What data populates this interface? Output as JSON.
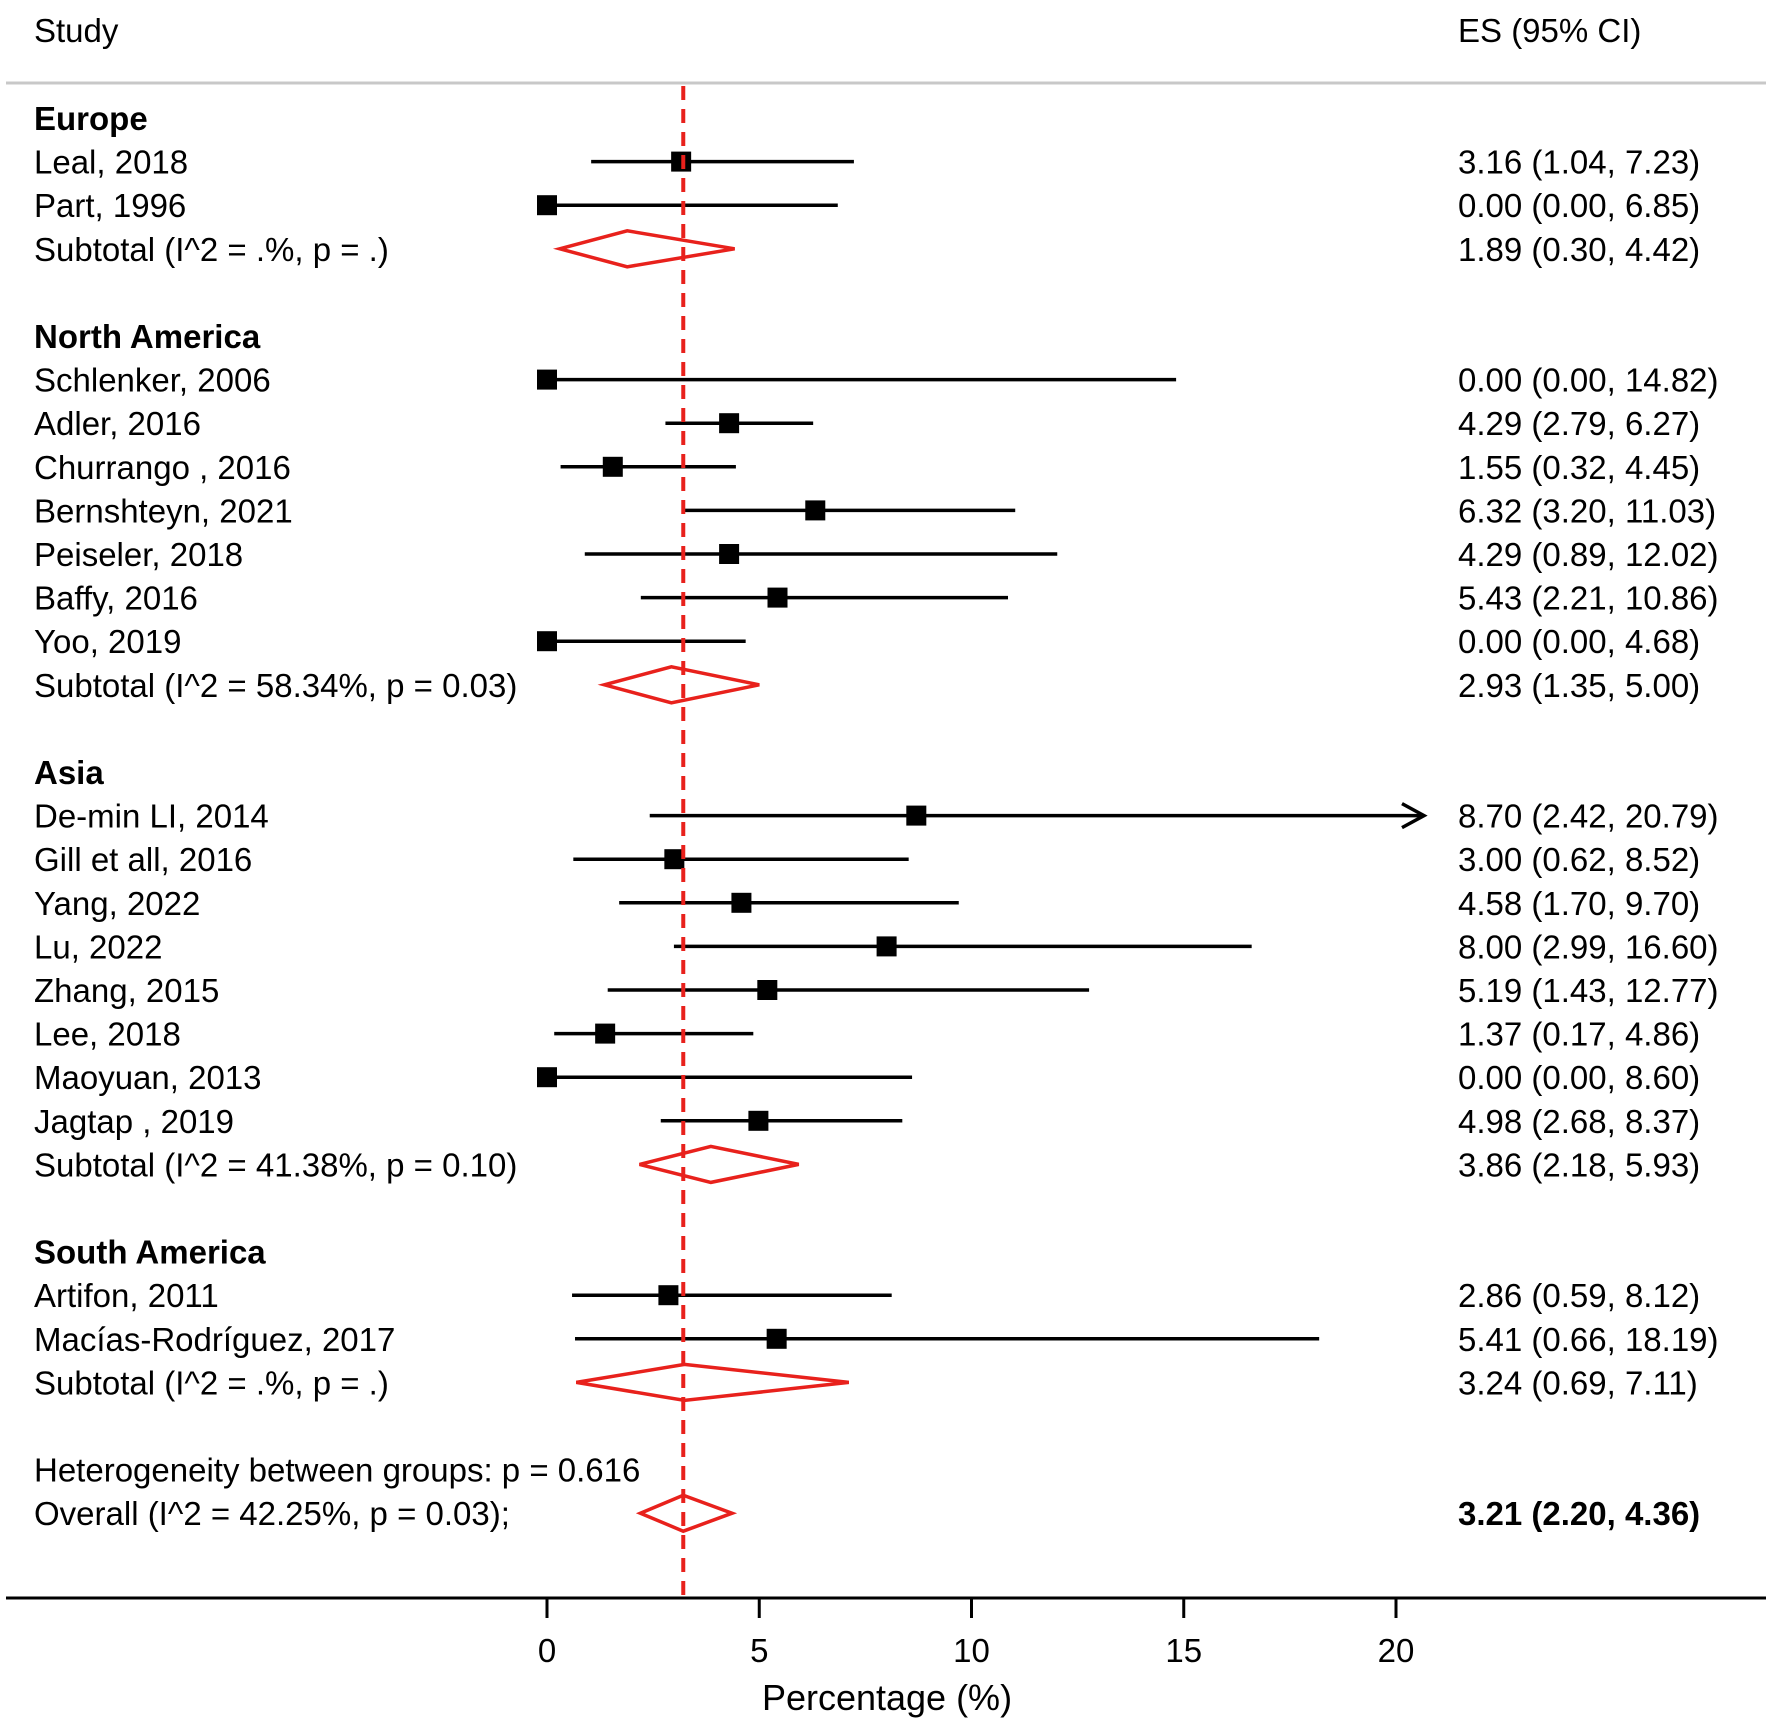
{
  "chart_data": {
    "type": "forest",
    "header": {
      "study": "Study",
      "es": "ES (95% CI)"
    },
    "xlabel": "Percentage (%)",
    "xticks": [
      0,
      5,
      10,
      15,
      20
    ],
    "xlim": [
      0,
      20
    ],
    "reference_line": 3.21,
    "colors": {
      "diamond": "#e8211c",
      "reference": "#e8211c",
      "marks": "#000000"
    },
    "groups": [
      {
        "name": "Europe",
        "studies": [
          {
            "label": "Leal, 2018",
            "es": 3.16,
            "lo": 1.04,
            "hi": 7.23,
            "text": "3.16 (1.04, 7.23)"
          },
          {
            "label": "Part, 1996",
            "es": 0.0,
            "lo": 0.0,
            "hi": 6.85,
            "text": "0.00 (0.00, 6.85)"
          }
        ],
        "subtotal": {
          "label": "Subtotal  (I^2 = .%, p = .)",
          "es": 1.89,
          "lo": 0.3,
          "hi": 4.42,
          "text": "1.89 (0.30, 4.42)"
        }
      },
      {
        "name": "North America",
        "studies": [
          {
            "label": "Schlenker, 2006",
            "es": 0.0,
            "lo": 0.0,
            "hi": 14.82,
            "text": "0.00 (0.00, 14.82)"
          },
          {
            "label": "Adler, 2016",
            "es": 4.29,
            "lo": 2.79,
            "hi": 6.27,
            "text": "4.29 (2.79, 6.27)"
          },
          {
            "label": "Churrango , 2016",
            "es": 1.55,
            "lo": 0.32,
            "hi": 4.45,
            "text": "1.55 (0.32, 4.45)"
          },
          {
            "label": "Bernshteyn, 2021",
            "es": 6.32,
            "lo": 3.2,
            "hi": 11.03,
            "text": "6.32 (3.20, 11.03)"
          },
          {
            "label": "Peiseler, 2018",
            "es": 4.29,
            "lo": 0.89,
            "hi": 12.02,
            "text": "4.29 (0.89, 12.02)"
          },
          {
            "label": "Baffy, 2016",
            "es": 5.43,
            "lo": 2.21,
            "hi": 10.86,
            "text": "5.43 (2.21, 10.86)"
          },
          {
            "label": "Yoo, 2019",
            "es": 0.0,
            "lo": 0.0,
            "hi": 4.68,
            "text": "0.00 (0.00, 4.68)"
          }
        ],
        "subtotal": {
          "label": "Subtotal  (I^2 = 58.34%, p = 0.03)",
          "es": 2.93,
          "lo": 1.35,
          "hi": 5.0,
          "text": "2.93 (1.35, 5.00)"
        }
      },
      {
        "name": "Asia",
        "studies": [
          {
            "label": "De-min LI, 2014",
            "es": 8.7,
            "lo": 2.42,
            "hi": 20.79,
            "text": "8.70 (2.42, 20.79)",
            "arrow": true
          },
          {
            "label": "Gill et all, 2016",
            "es": 3.0,
            "lo": 0.62,
            "hi": 8.52,
            "text": "3.00 (0.62, 8.52)"
          },
          {
            "label": "Yang, 2022",
            "es": 4.58,
            "lo": 1.7,
            "hi": 9.7,
            "text": "4.58 (1.70, 9.70)"
          },
          {
            "label": "Lu, 2022",
            "es": 8.0,
            "lo": 2.99,
            "hi": 16.6,
            "text": "8.00 (2.99, 16.60)"
          },
          {
            "label": "Zhang, 2015",
            "es": 5.19,
            "lo": 1.43,
            "hi": 12.77,
            "text": "5.19 (1.43, 12.77)"
          },
          {
            "label": "Lee, 2018",
            "es": 1.37,
            "lo": 0.17,
            "hi": 4.86,
            "text": "1.37 (0.17, 4.86)"
          },
          {
            "label": "Maoyuan, 2013",
            "es": 0.0,
            "lo": 0.0,
            "hi": 8.6,
            "text": "0.00 (0.00, 8.60)"
          },
          {
            "label": "Jagtap , 2019",
            "es": 4.98,
            "lo": 2.68,
            "hi": 8.37,
            "text": "4.98 (2.68, 8.37)"
          }
        ],
        "subtotal": {
          "label": "Subtotal  (I^2 = 41.38%, p = 0.10)",
          "es": 3.86,
          "lo": 2.18,
          "hi": 5.93,
          "text": "3.86 (2.18, 5.93)"
        }
      },
      {
        "name": "South America",
        "studies": [
          {
            "label": "Artifon, 2011",
            "es": 2.86,
            "lo": 0.59,
            "hi": 8.12,
            "text": "2.86 (0.59, 8.12)"
          },
          {
            "label": "Macías-Rodríguez, 2017",
            "es": 5.41,
            "lo": 0.66,
            "hi": 18.19,
            "text": "5.41 (0.66, 18.19)"
          }
        ],
        "subtotal": {
          "label": "Subtotal  (I^2 = .%, p = .)",
          "es": 3.24,
          "lo": 0.69,
          "hi": 7.11,
          "text": "3.24 (0.69, 7.11)"
        }
      }
    ],
    "heterogeneity": "Heterogeneity between groups: p = 0.616",
    "overall": {
      "label": "Overall  (I^2 = 42.25%, p = 0.03);",
      "es": 3.21,
      "lo": 2.2,
      "hi": 4.36,
      "text": "3.21 (2.20, 4.36)"
    }
  }
}
